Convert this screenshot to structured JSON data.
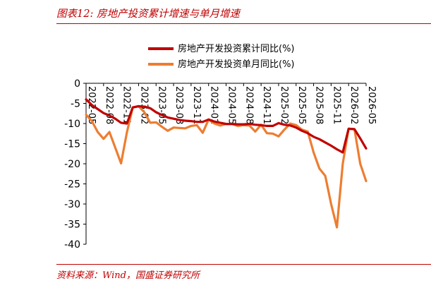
{
  "header": {
    "title": "图表12:  房地产投资累计增速与单月增速"
  },
  "footer": {
    "source": "资料来源：Wind，国盛证券研究所"
  },
  "colors": {
    "accent": "#c00000",
    "cumulative": "#c00000",
    "monthly": "#ed7d31"
  },
  "chart_data": {
    "type": "line",
    "title": "",
    "xlabel": "",
    "ylabel": "",
    "ylim": [
      -40,
      0
    ],
    "yticks": [
      0,
      -5,
      -10,
      -15,
      -20,
      -25,
      -30,
      -35,
      -40
    ],
    "grid": false,
    "legend_position": "top-center",
    "categories": [
      "2022-05",
      "2022-06",
      "2022-07",
      "2022-08",
      "2022-09",
      "2022-10",
      "2022-11",
      "2022-12",
      "2023-01",
      "2023-02",
      "2023-03",
      "2023-04",
      "2023-05",
      "2023-06",
      "2023-07",
      "2023-08",
      "2023-09",
      "2023-10",
      "2023-11",
      "2023-12",
      "2024-01",
      "2024-02",
      "2024-03",
      "2024-04",
      "2024-05",
      "2024-06",
      "2024-07",
      "2024-08",
      "2024-09",
      "2024-10",
      "2024-11",
      "2024-12",
      "2025-01",
      "2025-02",
      "2025-03",
      "2025-04",
      "2025-05",
      "2025-06",
      "2025-07",
      "2025-08",
      "2025-09",
      "2025-10",
      "2025-11",
      "2025-12",
      "2026-01",
      "2026-02",
      "2026-03",
      "2026-04",
      "2026-05"
    ],
    "tick_labels": [
      "2022-05",
      "2022-08",
      "2022-11",
      "2023-02",
      "2023-05",
      "2023-08",
      "2023-11",
      "2024-02",
      "2024-05",
      "2024-08",
      "2024-11",
      "2025-02",
      "2025-05",
      "2025-08",
      "2025-11",
      "2026-02",
      "2026-05"
    ],
    "series": [
      {
        "name": "房地产开发投资累计同比(%)",
        "color": "#c00000",
        "values": [
          -4.0,
          -5.4,
          -6.4,
          -7.4,
          -8.0,
          -8.8,
          -9.8,
          -10.0,
          -6.0,
          -5.7,
          -5.8,
          -6.2,
          -7.2,
          -7.9,
          -8.5,
          -8.8,
          -9.1,
          -9.3,
          -9.4,
          -9.6,
          -9.6,
          -9.0,
          -9.5,
          -9.8,
          -10.1,
          -10.1,
          -10.2,
          -10.2,
          -10.1,
          -10.3,
          -10.4,
          -10.6,
          -10.6,
          -9.9,
          -10.3,
          -10.5,
          -11.0,
          -11.8,
          -12.4,
          -13.3,
          -13.9,
          -14.7,
          -15.5,
          -16.4,
          -17.2,
          -11.3,
          -11.4,
          -13.7,
          -16.2
        ]
      },
      {
        "name": "房地产开发投资单月同比(%)",
        "color": "#ed7d31",
        "values": [
          -7.8,
          -9.4,
          -12.1,
          -13.8,
          -12.1,
          -16.0,
          -19.9,
          -12.2,
          -6.0,
          -5.7,
          -7.2,
          -9.8,
          -9.7,
          -10.8,
          -11.8,
          -11.0,
          -11.1,
          -11.2,
          -10.6,
          -10.4,
          -12.3,
          -9.0,
          -10.0,
          -10.5,
          -10.1,
          -10.1,
          -10.6,
          -10.4,
          -10.5,
          -12.0,
          -10.3,
          -12.4,
          -12.5,
          -13.2,
          -11.5,
          -10.0,
          -10.4,
          -11.5,
          -12.0,
          -17.2,
          -21.2,
          -23.0,
          -30.0,
          -35.8,
          -20.0,
          -11.3,
          -11.4,
          -20.0,
          -24.3
        ]
      }
    ]
  }
}
